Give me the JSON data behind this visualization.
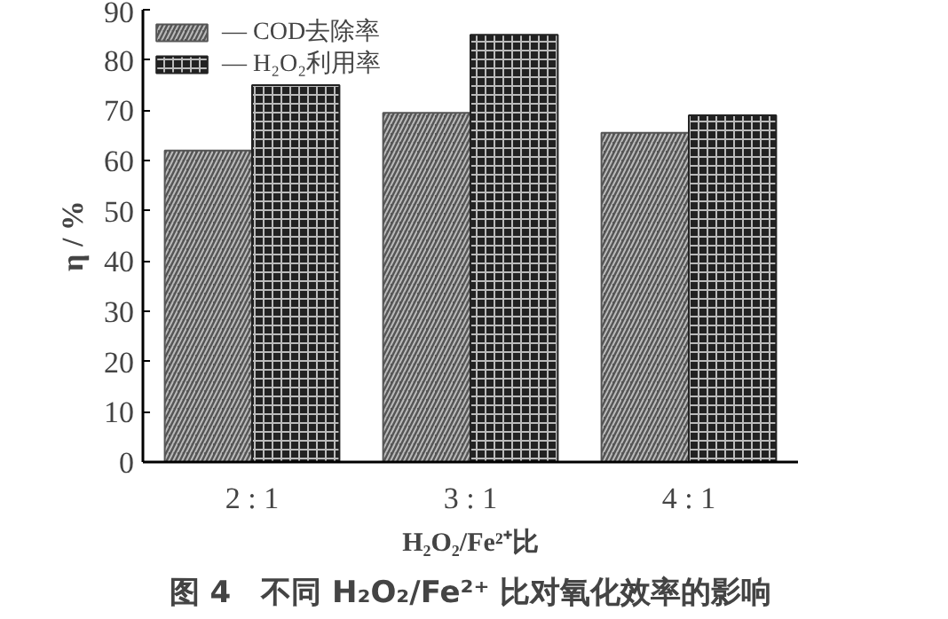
{
  "chart_data": {
    "type": "bar",
    "title": "图 4　不同 H₂O₂/Fe²⁺ 比对氧化效率的影响",
    "xlabel": "H₂O₂/Fe²⁺比",
    "ylabel": "η / %",
    "categories": [
      "2 : 1",
      "3 : 1",
      "4 : 1"
    ],
    "series": [
      {
        "name": "— COD去除率",
        "color": "#555555",
        "values": [
          62,
          69.5,
          65.5
        ]
      },
      {
        "name": "— H₂O₂利用率",
        "color": "#222222",
        "values": [
          75,
          85,
          69
        ]
      }
    ],
    "ylim": [
      0,
      90
    ],
    "yticks": [
      0,
      10,
      20,
      30,
      40,
      50,
      60,
      70,
      80,
      90
    ],
    "grid": false,
    "legend": "top left"
  }
}
